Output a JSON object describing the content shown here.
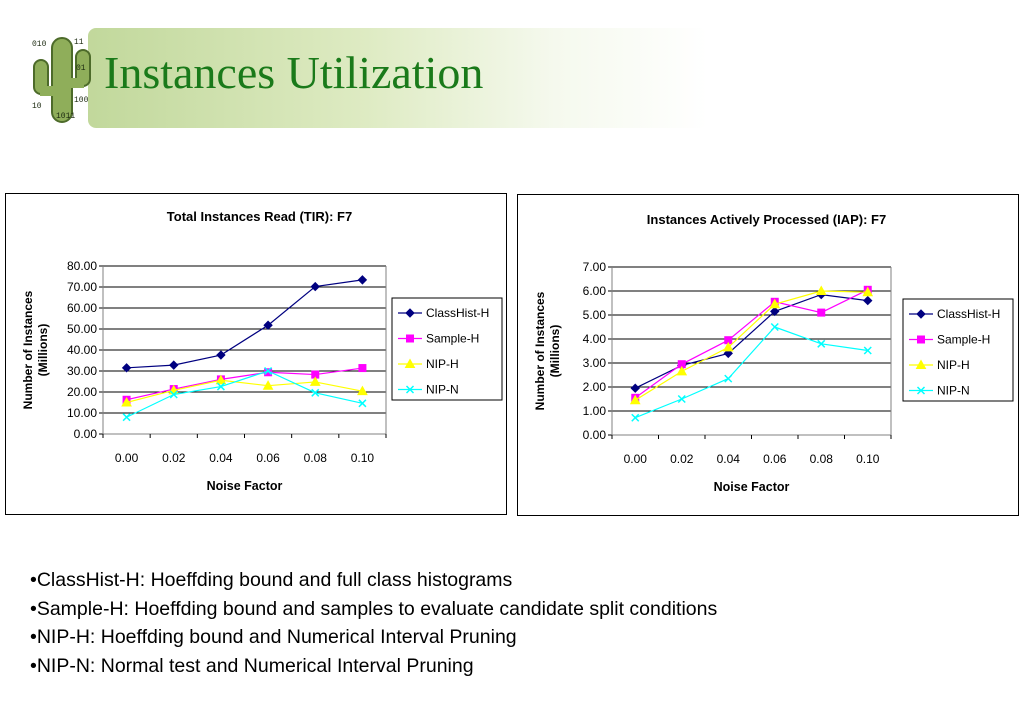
{
  "slide": {
    "title": "Instances Utilization",
    "bullets": [
      "•ClassHist-H: Hoeffding bound and full class histograms",
      "•Sample-H: Hoeffding bound and samples to evaluate candidate split conditions",
      "•NIP-H: Hoeffding bound and Numerical Interval Pruning",
      "•NIP-N: Normal test and Numerical Interval Pruning"
    ]
  },
  "colors": {
    "title": "#1a7a1a",
    "ClassHist-H": "#000080",
    "Sample-H": "#ff00ff",
    "NIP-H": "#ffff00",
    "NIP-N": "#00ffff"
  },
  "chart_data": [
    {
      "type": "line",
      "title": "Total Instances Read (TIR): F7",
      "xlabel": "Noise Factor",
      "ylabel": "Number of Instances (Millions)",
      "ylim": [
        0,
        80
      ],
      "ytick_step": 10,
      "ytick_decimals": 2,
      "grid": true,
      "legend": "right",
      "categories": [
        "0.00",
        "0.02",
        "0.04",
        "0.06",
        "0.08",
        "0.10"
      ],
      "series": [
        {
          "name": "ClassHist-H",
          "marker": "diamond",
          "values": [
            31.5,
            32.8,
            37.6,
            51.8,
            70.2,
            73.4
          ]
        },
        {
          "name": "Sample-H",
          "marker": "square",
          "values": [
            16.3,
            21.4,
            26.0,
            29.4,
            28.3,
            31.4
          ]
        },
        {
          "name": "NIP-H",
          "marker": "triangle",
          "values": [
            15.0,
            20.8,
            25.6,
            23.0,
            24.8,
            20.4
          ]
        },
        {
          "name": "NIP-N",
          "marker": "x",
          "values": [
            8.0,
            18.8,
            22.6,
            30.0,
            19.6,
            14.6
          ]
        }
      ]
    },
    {
      "type": "line",
      "title": "Instances Actively Processed (IAP): F7",
      "xlabel": "Noise Factor",
      "ylabel": "Number of Instances (Millions)",
      "ylim": [
        0,
        7
      ],
      "ytick_step": 1,
      "ytick_decimals": 2,
      "grid": true,
      "legend": "right",
      "categories": [
        "0.00",
        "0.02",
        "0.04",
        "0.06",
        "0.08",
        "0.10"
      ],
      "series": [
        {
          "name": "ClassHist-H",
          "marker": "diamond",
          "values": [
            1.95,
            2.9,
            3.4,
            5.15,
            5.85,
            5.6
          ]
        },
        {
          "name": "Sample-H",
          "marker": "square",
          "values": [
            1.55,
            2.95,
            3.95,
            5.55,
            5.1,
            6.05
          ]
        },
        {
          "name": "NIP-H",
          "marker": "triangle",
          "values": [
            1.45,
            2.65,
            3.65,
            5.45,
            6.0,
            5.95
          ]
        },
        {
          "name": "NIP-N",
          "marker": "x",
          "values": [
            0.72,
            1.5,
            2.35,
            4.5,
            3.8,
            3.52
          ]
        }
      ]
    }
  ]
}
